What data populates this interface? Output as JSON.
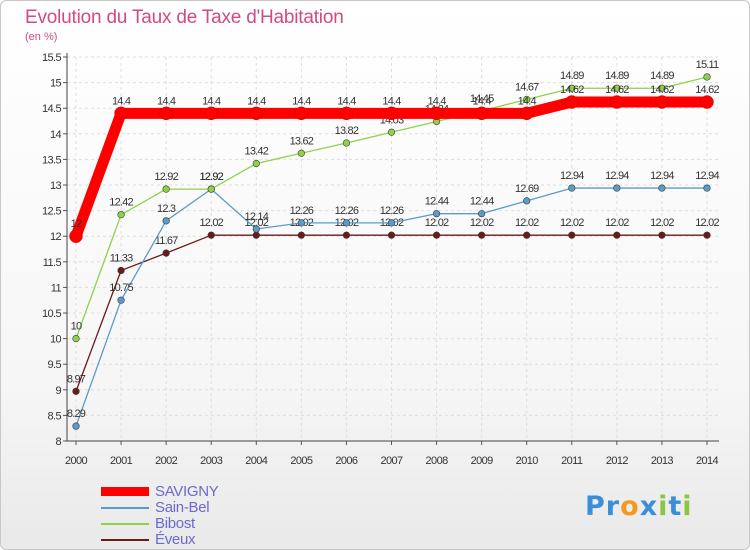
{
  "title": "Evolution du Taux de Taxe d'Habitation",
  "subtitle": "(en %)",
  "chart_data": {
    "type": "line",
    "title": "Evolution du Taux de Taxe d'Habitation",
    "ylabel": "(en %)",
    "xlabel": "",
    "x": [
      "2000",
      "2001",
      "2002",
      "2003",
      "2004",
      "2005",
      "2006",
      "2007",
      "2008",
      "2009",
      "2010",
      "2011",
      "2012",
      "2013",
      "2014"
    ],
    "ylim": [
      8,
      15.5
    ],
    "yticks": [
      "8",
      "8.5",
      "9",
      "9.5",
      "10",
      "10.5",
      "11",
      "11.5",
      "12",
      "12.5",
      "13",
      "13.5",
      "14",
      "14.5",
      "15",
      "15.5"
    ],
    "grid": true,
    "legend_position": "bottom-left",
    "series": [
      {
        "name": "Éveux",
        "color": "#6b1a1a",
        "values": [
          8.97,
          11.33,
          11.67,
          12.02,
          12.02,
          12.02,
          12.02,
          12.02,
          12.02,
          12.02,
          12.02,
          12.02,
          12.02,
          12.02,
          12.02
        ],
        "labels": [
          "8.97",
          "11.33",
          "11.67",
          "12.02",
          "12.02",
          "12.02",
          "12.02",
          "12.02",
          "12.02",
          "12.02",
          "12.02",
          "12.02",
          "12.02",
          "12.02",
          "12.02"
        ]
      },
      {
        "name": "Sain-Bel",
        "color": "#5a9cc9",
        "values": [
          8.29,
          10.75,
          12.3,
          12.92,
          12.14,
          12.26,
          12.26,
          12.26,
          12.44,
          12.44,
          12.69,
          12.94,
          12.94,
          12.94,
          12.94
        ],
        "labels": [
          "8.29",
          "10.75",
          "12.3",
          "12.92",
          "12.14",
          "12.26",
          "12.26",
          "12.26",
          "12.44",
          "12.44",
          "12.69",
          "12.94",
          "12.94",
          "12.94",
          "12.94"
        ]
      },
      {
        "name": "Bibost",
        "color": "#8fd24a",
        "values": [
          10,
          12.42,
          12.92,
          12.92,
          13.42,
          13.62,
          13.82,
          14.03,
          14.24,
          14.45,
          14.67,
          14.89,
          14.89,
          14.89,
          15.11
        ],
        "labels": [
          "10",
          "12.42",
          "12.92",
          "12.92",
          "13.42",
          "13.62",
          "13.82",
          "14.03",
          "14.24",
          "14.45",
          "14.67",
          "14.89",
          "14.89",
          "14.89",
          "15.11"
        ]
      },
      {
        "name": "SAVIGNY",
        "color": "#ff0000",
        "values": [
          12,
          14.4,
          14.4,
          14.4,
          14.4,
          14.4,
          14.4,
          14.4,
          14.4,
          14.4,
          14.4,
          14.62,
          14.62,
          14.62,
          14.62
        ],
        "labels": [
          "12",
          "14.4",
          "14.4",
          "14.4",
          "14.4",
          "14.4",
          "14.4",
          "14.4",
          "14.4",
          "14.4",
          "14.4",
          "14.62",
          "14.62",
          "14.62",
          "14.62"
        ]
      }
    ]
  },
  "legend": [
    {
      "label": "SAVIGNY",
      "color": "#ff0000",
      "text_color": "#6a6ad0"
    },
    {
      "label": "Sain-Bel",
      "color": "#5a9cc9",
      "text_color": "#6a6ad0"
    },
    {
      "label": "Bibost",
      "color": "#8fd24a",
      "text_color": "#6a6ad0"
    },
    {
      "label": "Éveux",
      "color": "#6b1a1a",
      "text_color": "#6a6ad0"
    }
  ],
  "logo": {
    "text": "Proxiti",
    "letters": [
      "P",
      "r",
      "o",
      "x",
      "i",
      "t",
      "i"
    ],
    "colors": [
      "#3a8fd8",
      "#3a8fd8",
      "#f39a1e",
      "#3a8fd8",
      "#8cc63e",
      "#3a8fd8",
      "#8cc63e"
    ]
  }
}
